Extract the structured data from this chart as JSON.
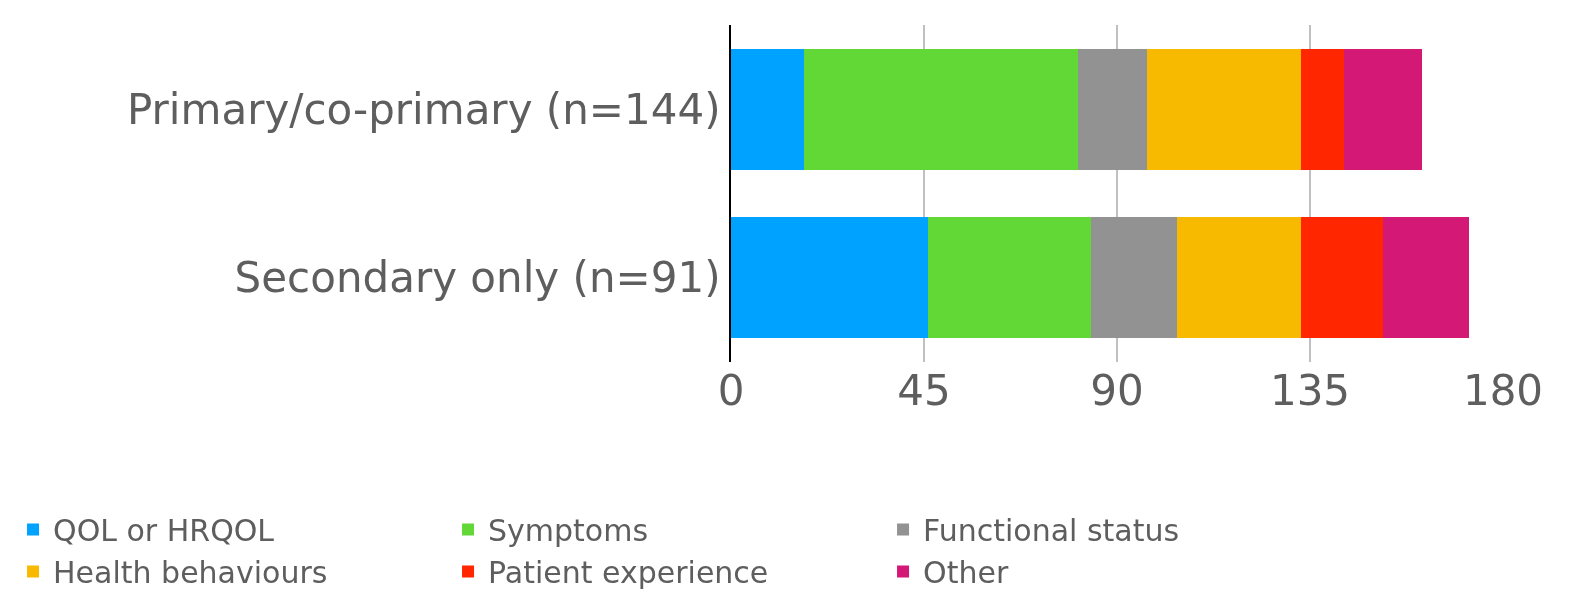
{
  "chart_data": {
    "type": "bar",
    "orientation": "horizontal",
    "stacked": true,
    "categories": [
      "Primary/co-primary (n=144)",
      "Secondary only (n=91)"
    ],
    "series": [
      {
        "name": "QOL or HRQOL",
        "color": "#00a2ff",
        "values": [
          17,
          46
        ]
      },
      {
        "name": "Symptoms",
        "color": "#61d836",
        "values": [
          64,
          38
        ]
      },
      {
        "name": "Functional status",
        "color": "#929292",
        "values": [
          16,
          20
        ]
      },
      {
        "name": "Health behaviours",
        "color": "#f8ba00",
        "values": [
          36,
          29
        ]
      },
      {
        "name": "Patient experience",
        "color": "#ff2600",
        "values": [
          10,
          19
        ]
      },
      {
        "name": "Other",
        "color": "#d31876",
        "values": [
          18,
          20
        ]
      }
    ],
    "xlim": [
      0,
      180
    ],
    "xticks": [
      0,
      45,
      90,
      135,
      180
    ],
    "grid": "x",
    "legend": "bottom left"
  }
}
